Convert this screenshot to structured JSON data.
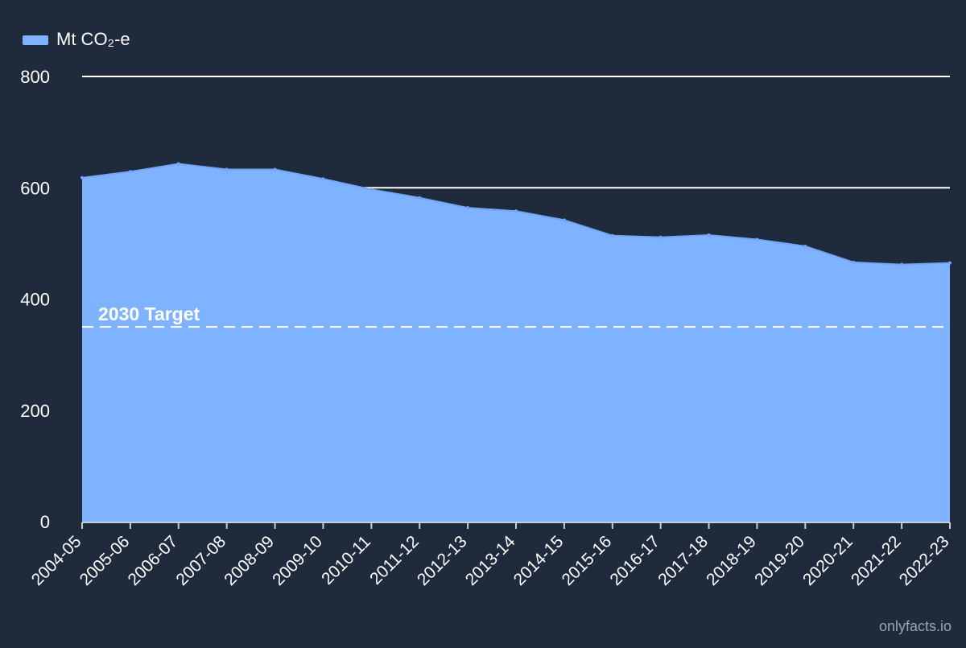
{
  "chart_data": {
    "type": "area",
    "categories": [
      "2004-05",
      "2005-06",
      "2006-07",
      "2007-08",
      "2008-09",
      "2009-10",
      "2010-11",
      "2011-12",
      "2012-13",
      "2013-14",
      "2014-15",
      "2015-16",
      "2016-17",
      "2017-18",
      "2018-19",
      "2019-20",
      "2020-21",
      "2021-22",
      "2022-23"
    ],
    "series": [
      {
        "name": "Mt CO₂-e",
        "values": [
          618,
          629,
          643,
          633,
          633,
          616,
          597,
          582,
          564,
          558,
          542,
          514,
          511,
          515,
          507,
          495,
          466,
          462,
          465
        ]
      }
    ],
    "yticks": [
      "0",
      "200",
      "400",
      "600",
      "800"
    ],
    "ylim": [
      0,
      800
    ],
    "target": {
      "label": "2030 Target",
      "value": 350
    },
    "legend_position": "top-left",
    "grid": true,
    "series_color": "#80b3ff",
    "background_color": "#1f2a3c",
    "text_color": "#ffffff"
  },
  "footer": {
    "source": "onlyfacts.io"
  }
}
